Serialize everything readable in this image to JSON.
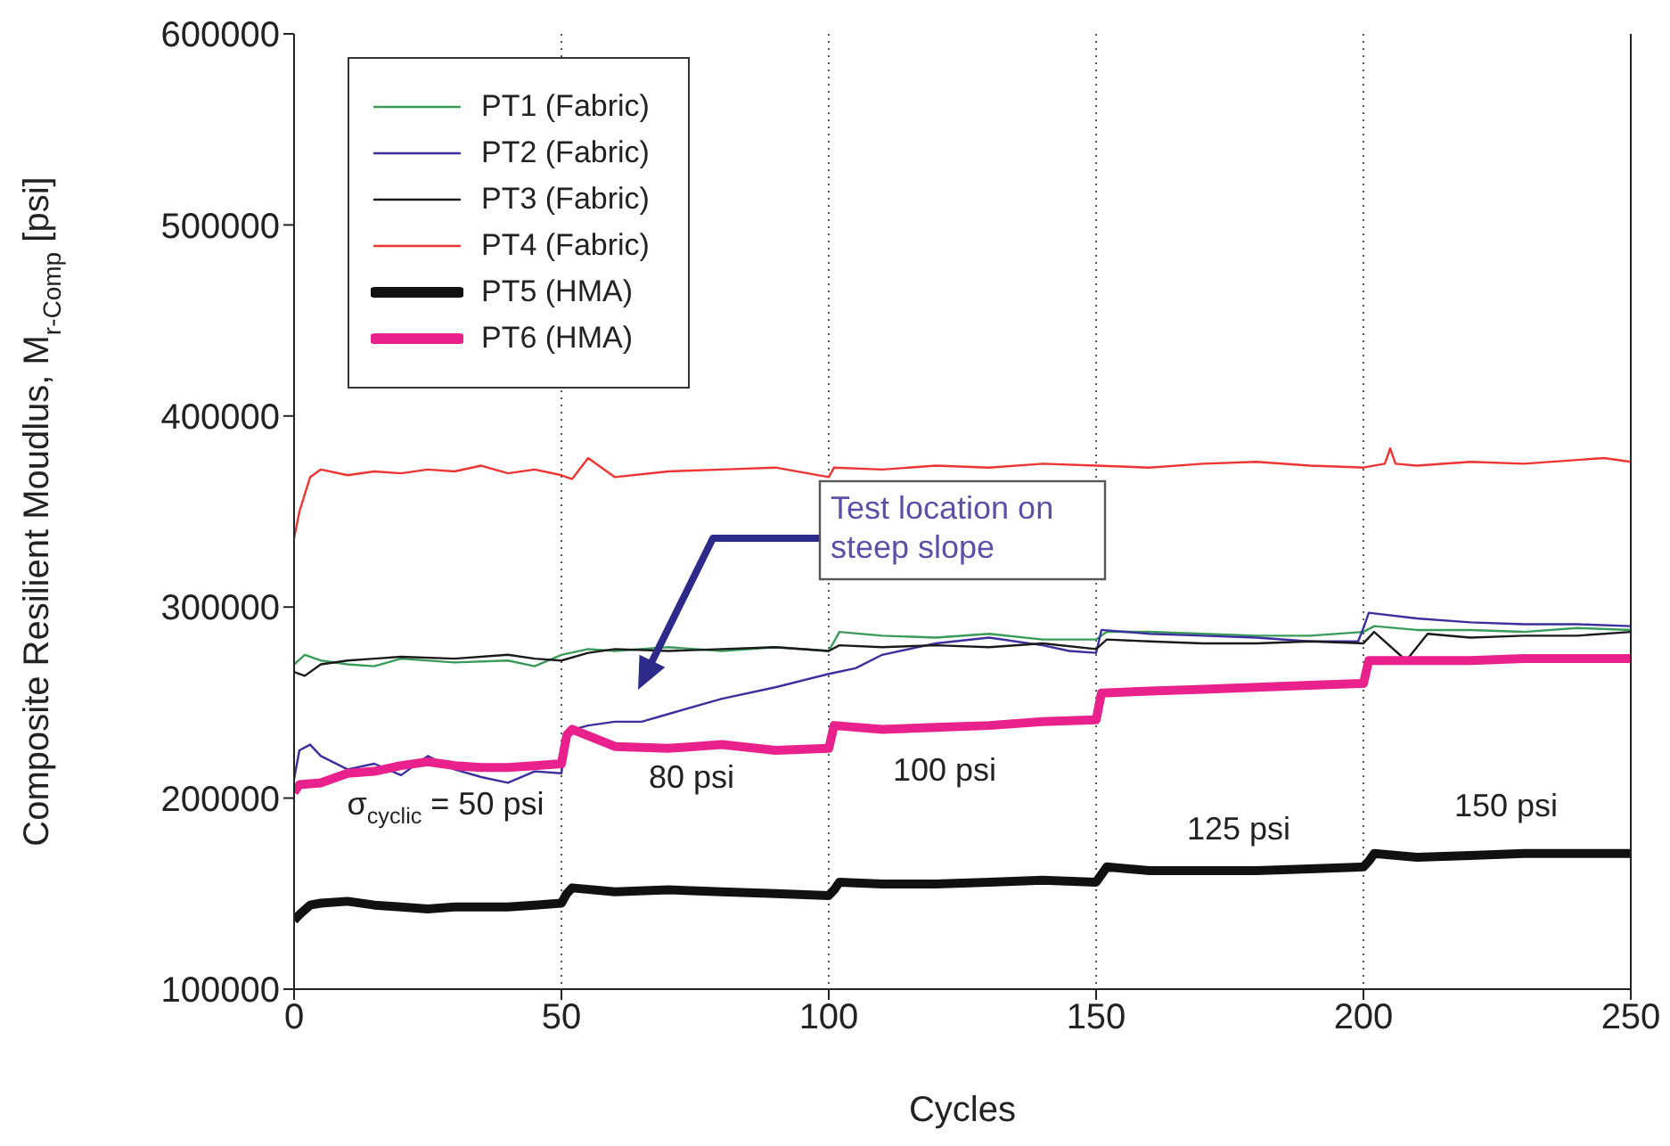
{
  "chart_data": {
    "type": "line",
    "xlabel": "Cycles",
    "ylabel": "Composite Resilient Moudlus, M$_{r-Comp}$ [psi]",
    "xlim": [
      0,
      250
    ],
    "xticks": [
      0,
      50,
      100,
      150,
      200,
      250
    ],
    "ylim": [
      100000,
      600000
    ],
    "yticks": [
      100000,
      200000,
      300000,
      400000,
      500000,
      600000
    ],
    "grid": "x",
    "legend": "top left",
    "line_style": "solid",
    "marker": "none",
    "series": [
      {
        "name": "PT1 (Fabric)",
        "color": "#3a9a5a",
        "x": [
          0,
          2,
          5,
          10,
          15,
          20,
          30,
          40,
          45,
          50,
          55,
          60,
          70,
          80,
          90,
          100,
          102,
          110,
          120,
          130,
          140,
          150,
          152,
          160,
          170,
          180,
          190,
          200,
          202,
          210,
          220,
          230,
          240,
          250
        ],
        "values": [
          270000,
          275000,
          272000,
          270000,
          269000,
          273000,
          271000,
          272000,
          269000,
          275000,
          278000,
          277000,
          279000,
          277000,
          279000,
          277000,
          287000,
          285000,
          284000,
          286000,
          283000,
          283000,
          287000,
          287000,
          286000,
          285000,
          285000,
          287000,
          290000,
          288000,
          288000,
          287000,
          289000,
          288000
        ]
      },
      {
        "name": "PT2 (Fabric)",
        "color": "#3a2f9c",
        "x": [
          0,
          1,
          3,
          5,
          10,
          15,
          20,
          25,
          30,
          35,
          40,
          45,
          50,
          51,
          55,
          60,
          65,
          70,
          80,
          90,
          100,
          105,
          110,
          120,
          130,
          140,
          145,
          150,
          151,
          160,
          170,
          180,
          190,
          199,
          200,
          201,
          210,
          220,
          230,
          240,
          250
        ],
        "values": [
          210000,
          225000,
          228000,
          222000,
          215000,
          218000,
          212000,
          222000,
          215000,
          211000,
          208000,
          214000,
          213000,
          235000,
          238000,
          240000,
          240000,
          244000,
          252000,
          258000,
          265000,
          268000,
          275000,
          281000,
          284000,
          280000,
          277000,
          276000,
          288000,
          286000,
          285000,
          284000,
          282000,
          282000,
          289000,
          297000,
          294000,
          292000,
          291000,
          291000,
          290000
        ]
      },
      {
        "name": "PT3 (Fabric)",
        "color": "#1a1a1a",
        "x": [
          0,
          2,
          5,
          10,
          15,
          20,
          30,
          40,
          45,
          50,
          55,
          60,
          70,
          80,
          90,
          100,
          102,
          110,
          120,
          130,
          140,
          150,
          152,
          160,
          170,
          180,
          190,
          200,
          202,
          208,
          212,
          220,
          230,
          240,
          250
        ],
        "values": [
          266000,
          264000,
          270000,
          272000,
          273000,
          274000,
          273000,
          275000,
          273000,
          272000,
          276000,
          278000,
          277000,
          278000,
          279000,
          277000,
          280000,
          279000,
          280000,
          279000,
          281000,
          278000,
          283000,
          282000,
          281000,
          281000,
          282000,
          281000,
          287000,
          272000,
          286000,
          284000,
          285000,
          285000,
          287000
        ]
      },
      {
        "name": "PT4 (Fabric)",
        "color": "#ee3333",
        "x": [
          0,
          1,
          3,
          5,
          10,
          15,
          20,
          25,
          30,
          35,
          40,
          45,
          50,
          52,
          55,
          60,
          70,
          80,
          90,
          100,
          101,
          110,
          120,
          130,
          140,
          150,
          160,
          170,
          180,
          190,
          200,
          204,
          205,
          206,
          210,
          220,
          230,
          240,
          245,
          250
        ],
        "values": [
          336000,
          350000,
          368000,
          372000,
          369000,
          371000,
          370000,
          372000,
          371000,
          374000,
          370000,
          372000,
          369000,
          367000,
          378000,
          368000,
          371000,
          372000,
          373000,
          368000,
          373000,
          372000,
          374000,
          373000,
          375000,
          374000,
          373000,
          375000,
          376000,
          374000,
          373000,
          375000,
          383000,
          375000,
          374000,
          376000,
          375000,
          377000,
          378000,
          376000
        ]
      },
      {
        "name": "PT5 (HMA)",
        "color": "#111111",
        "x": [
          0,
          1,
          3,
          5,
          10,
          15,
          20,
          25,
          30,
          35,
          40,
          45,
          50,
          51,
          52,
          60,
          70,
          80,
          90,
          100,
          101,
          102,
          110,
          120,
          130,
          140,
          150,
          151,
          152,
          160,
          170,
          180,
          190,
          200,
          201,
          202,
          210,
          220,
          230,
          240,
          250
        ],
        "values": [
          136000,
          139000,
          144000,
          145000,
          146000,
          144000,
          143000,
          142000,
          143000,
          143000,
          143000,
          144000,
          145000,
          150000,
          153000,
          151000,
          152000,
          151000,
          150000,
          149000,
          152000,
          156000,
          155000,
          155000,
          156000,
          157000,
          156000,
          160000,
          164000,
          162000,
          162000,
          162000,
          163000,
          164000,
          167000,
          171000,
          169000,
          170000,
          171000,
          171000,
          171000
        ]
      },
      {
        "name": "PT6 (HMA)",
        "color": "#e8218c",
        "x": [
          0,
          1,
          5,
          10,
          15,
          20,
          25,
          30,
          35,
          40,
          45,
          50,
          51,
          52,
          60,
          70,
          80,
          90,
          100,
          101,
          110,
          120,
          130,
          140,
          150,
          151,
          160,
          170,
          180,
          190,
          200,
          201,
          210,
          220,
          230,
          240,
          250
        ],
        "values": [
          203000,
          207000,
          208000,
          213000,
          214000,
          217000,
          219000,
          217000,
          216000,
          216000,
          217000,
          218000,
          233000,
          236000,
          227000,
          226000,
          228000,
          225000,
          226000,
          238000,
          236000,
          237000,
          238000,
          240000,
          241000,
          255000,
          256000,
          257000,
          258000,
          259000,
          260000,
          272000,
          272000,
          272000,
          273000,
          273000,
          273000
        ]
      }
    ],
    "annotations": [
      "σ$_{cyclic}$ = 50 psi",
      "80 psi",
      "100 psi",
      "125 psi",
      "150 psi",
      "Test location on steep slope"
    ]
  }
}
